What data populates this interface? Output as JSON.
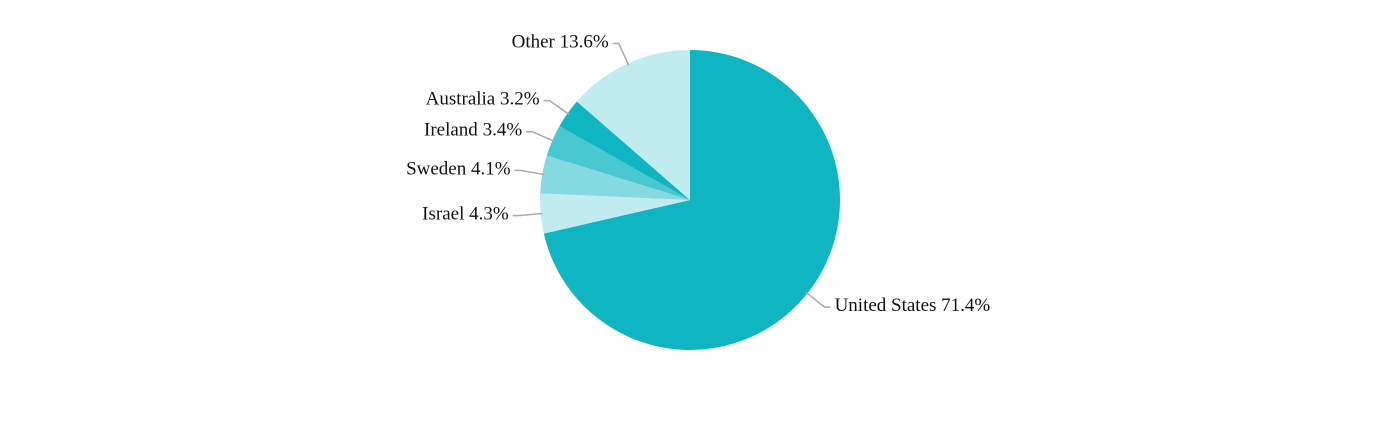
{
  "chart_data": {
    "type": "pie",
    "categories": [
      "United States",
      "Israel",
      "Sweden",
      "Ireland",
      "Australia",
      "Other"
    ],
    "values": [
      71.4,
      4.3,
      4.1,
      3.4,
      3.2,
      13.6
    ],
    "value_labels": [
      "71.4%",
      "4.3%",
      "4.1%",
      "3.4%",
      "3.2%",
      "13.6%"
    ],
    "colors": [
      "#0fb5c1",
      "#c1ecef",
      "#84dae0",
      "#4ac8d1",
      "#0fb5c1",
      "#c1ecef"
    ]
  }
}
